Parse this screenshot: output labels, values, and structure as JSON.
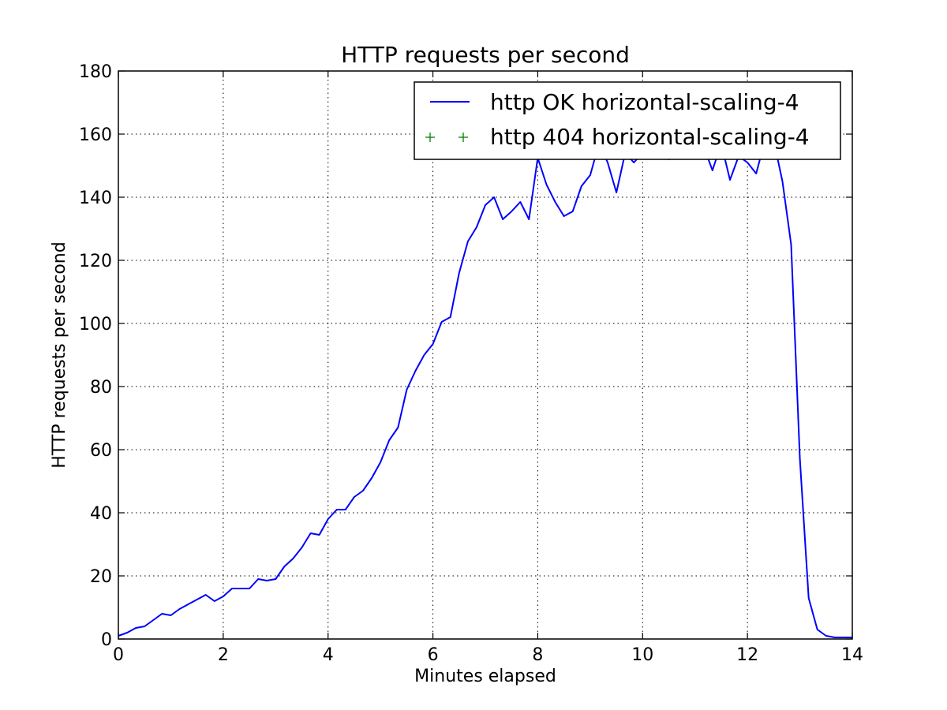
{
  "chart_data": {
    "type": "line",
    "title": "HTTP requests per second",
    "xlabel": "Minutes elapsed",
    "ylabel": "HTTP requests per second",
    "xlim": [
      0,
      14
    ],
    "ylim": [
      0,
      180
    ],
    "xticks": [
      0,
      2,
      4,
      6,
      8,
      10,
      12,
      14
    ],
    "yticks": [
      0,
      20,
      40,
      60,
      80,
      100,
      120,
      140,
      160,
      180
    ],
    "grid": true,
    "legend_position": "top-right",
    "series": [
      {
        "name": "http OK horizontal-scaling-4",
        "style": "line",
        "color": "#0000ff",
        "x": [
          0,
          0.167,
          0.333,
          0.5,
          0.667,
          0.833,
          1.0,
          1.167,
          1.333,
          1.5,
          1.667,
          1.833,
          2.0,
          2.167,
          2.333,
          2.5,
          2.667,
          2.833,
          3.0,
          3.167,
          3.333,
          3.5,
          3.667,
          3.833,
          4.0,
          4.167,
          4.333,
          4.5,
          4.667,
          4.833,
          5.0,
          5.167,
          5.333,
          5.5,
          5.667,
          5.833,
          6.0,
          6.167,
          6.333,
          6.5,
          6.667,
          6.833,
          7.0,
          7.167,
          7.333,
          7.5,
          7.667,
          7.833,
          8.0,
          8.167,
          8.333,
          8.5,
          8.667,
          8.833,
          9.0,
          9.167,
          9.333,
          9.5,
          9.667,
          9.833,
          10.0,
          10.167,
          10.333,
          10.5,
          10.667,
          10.833,
          11.0,
          11.167,
          11.333,
          11.5,
          11.667,
          11.833,
          12.0,
          12.167,
          12.333,
          12.5,
          12.667,
          12.833,
          13.0,
          13.167,
          13.333,
          13.5,
          13.667,
          13.833,
          14.0
        ],
        "values": [
          1.0,
          2.0,
          3.5,
          4.0,
          6.0,
          8.0,
          7.5,
          9.5,
          11.0,
          12.5,
          14.0,
          12.0,
          13.5,
          16.0,
          16.0,
          16.0,
          19.0,
          18.5,
          19.0,
          23.0,
          25.5,
          29.0,
          33.5,
          33.0,
          38.0,
          41.0,
          41.0,
          45.0,
          47.0,
          51.0,
          56.0,
          63.0,
          67.0,
          79.0,
          85.0,
          90.0,
          93.5,
          100.5,
          102.0,
          116.0,
          126.0,
          130.5,
          137.5,
          140.0,
          133.0,
          135.5,
          138.5,
          133.0,
          152.5,
          144.0,
          138.5,
          134.0,
          135.5,
          143.5,
          147.0,
          157.0,
          151.0,
          141.5,
          154.0,
          151.0,
          154.0,
          156.0,
          155.0,
          152.0,
          155.0,
          157.0,
          156.0,
          156.0,
          148.5,
          157.0,
          145.5,
          153.0,
          151.0,
          147.5,
          158.0,
          158.0,
          145.0,
          125.0,
          57.0,
          13.0,
          3.0,
          1.0,
          0.5,
          0.5,
          0.5
        ]
      },
      {
        "name": "http 404 horizontal-scaling-4",
        "style": "marker",
        "color": "#008000",
        "x": [],
        "values": []
      }
    ]
  }
}
